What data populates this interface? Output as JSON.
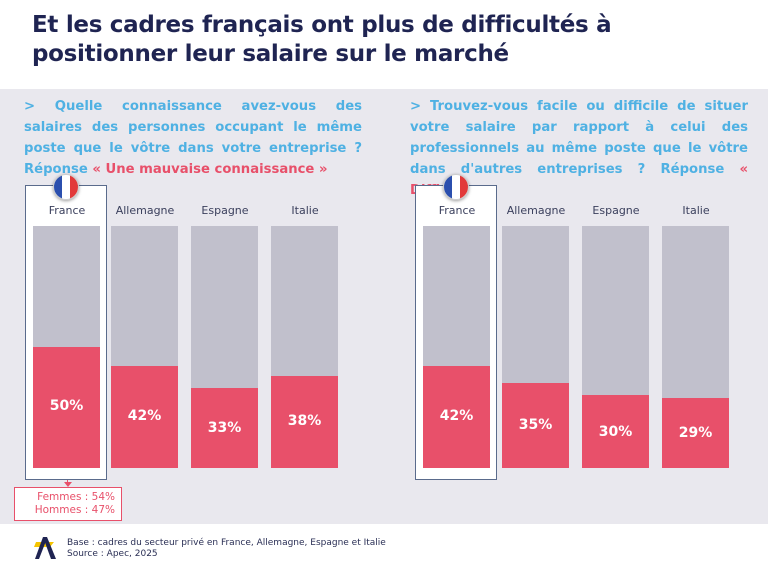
{
  "title": "Et les cadres français ont plus de difficultés à positionner leur salaire sur le marché",
  "chart_data": [
    {
      "type": "bar",
      "question": "> Quelle connaissance avez-vous des salaires des personnes occupant le même poste que le vôtre dans votre entreprise ? Réponse ",
      "answer": "« Une mauvaise connaissance »",
      "categories": [
        "France",
        "Allemagne",
        "Espagne",
        "Italie"
      ],
      "values": [
        50,
        42,
        33,
        38
      ],
      "labels": [
        "50%",
        "42%",
        "33%",
        "38%"
      ],
      "ylim": [
        0,
        100
      ],
      "highlight": "France",
      "callout": [
        "Femmes : 54%",
        "Hommes : 47%"
      ]
    },
    {
      "type": "bar",
      "question": "> Trouvez-vous facile ou difficile de situer votre salaire par rapport à celui des professionnels au même poste que le vôtre dans d'autres entreprises ? Réponse ",
      "answer": "« Difficile »",
      "categories": [
        "France",
        "Allemagne",
        "Espagne",
        "Italie"
      ],
      "values": [
        42,
        35,
        30,
        29
      ],
      "labels": [
        "42%",
        "35%",
        "30%",
        "29%"
      ],
      "ylim": [
        0,
        100
      ],
      "highlight": "France"
    }
  ],
  "colors": {
    "bar_fill": "#e8506a",
    "bar_bg": "#c1c0cc",
    "question": "#4fb1e3",
    "title": "#1f2452"
  },
  "footer": {
    "base": "Base : cadres du secteur privé en France, Allemagne, Espagne et Italie",
    "source": "Source : Apec, 2025"
  },
  "logo": "apec-logo"
}
